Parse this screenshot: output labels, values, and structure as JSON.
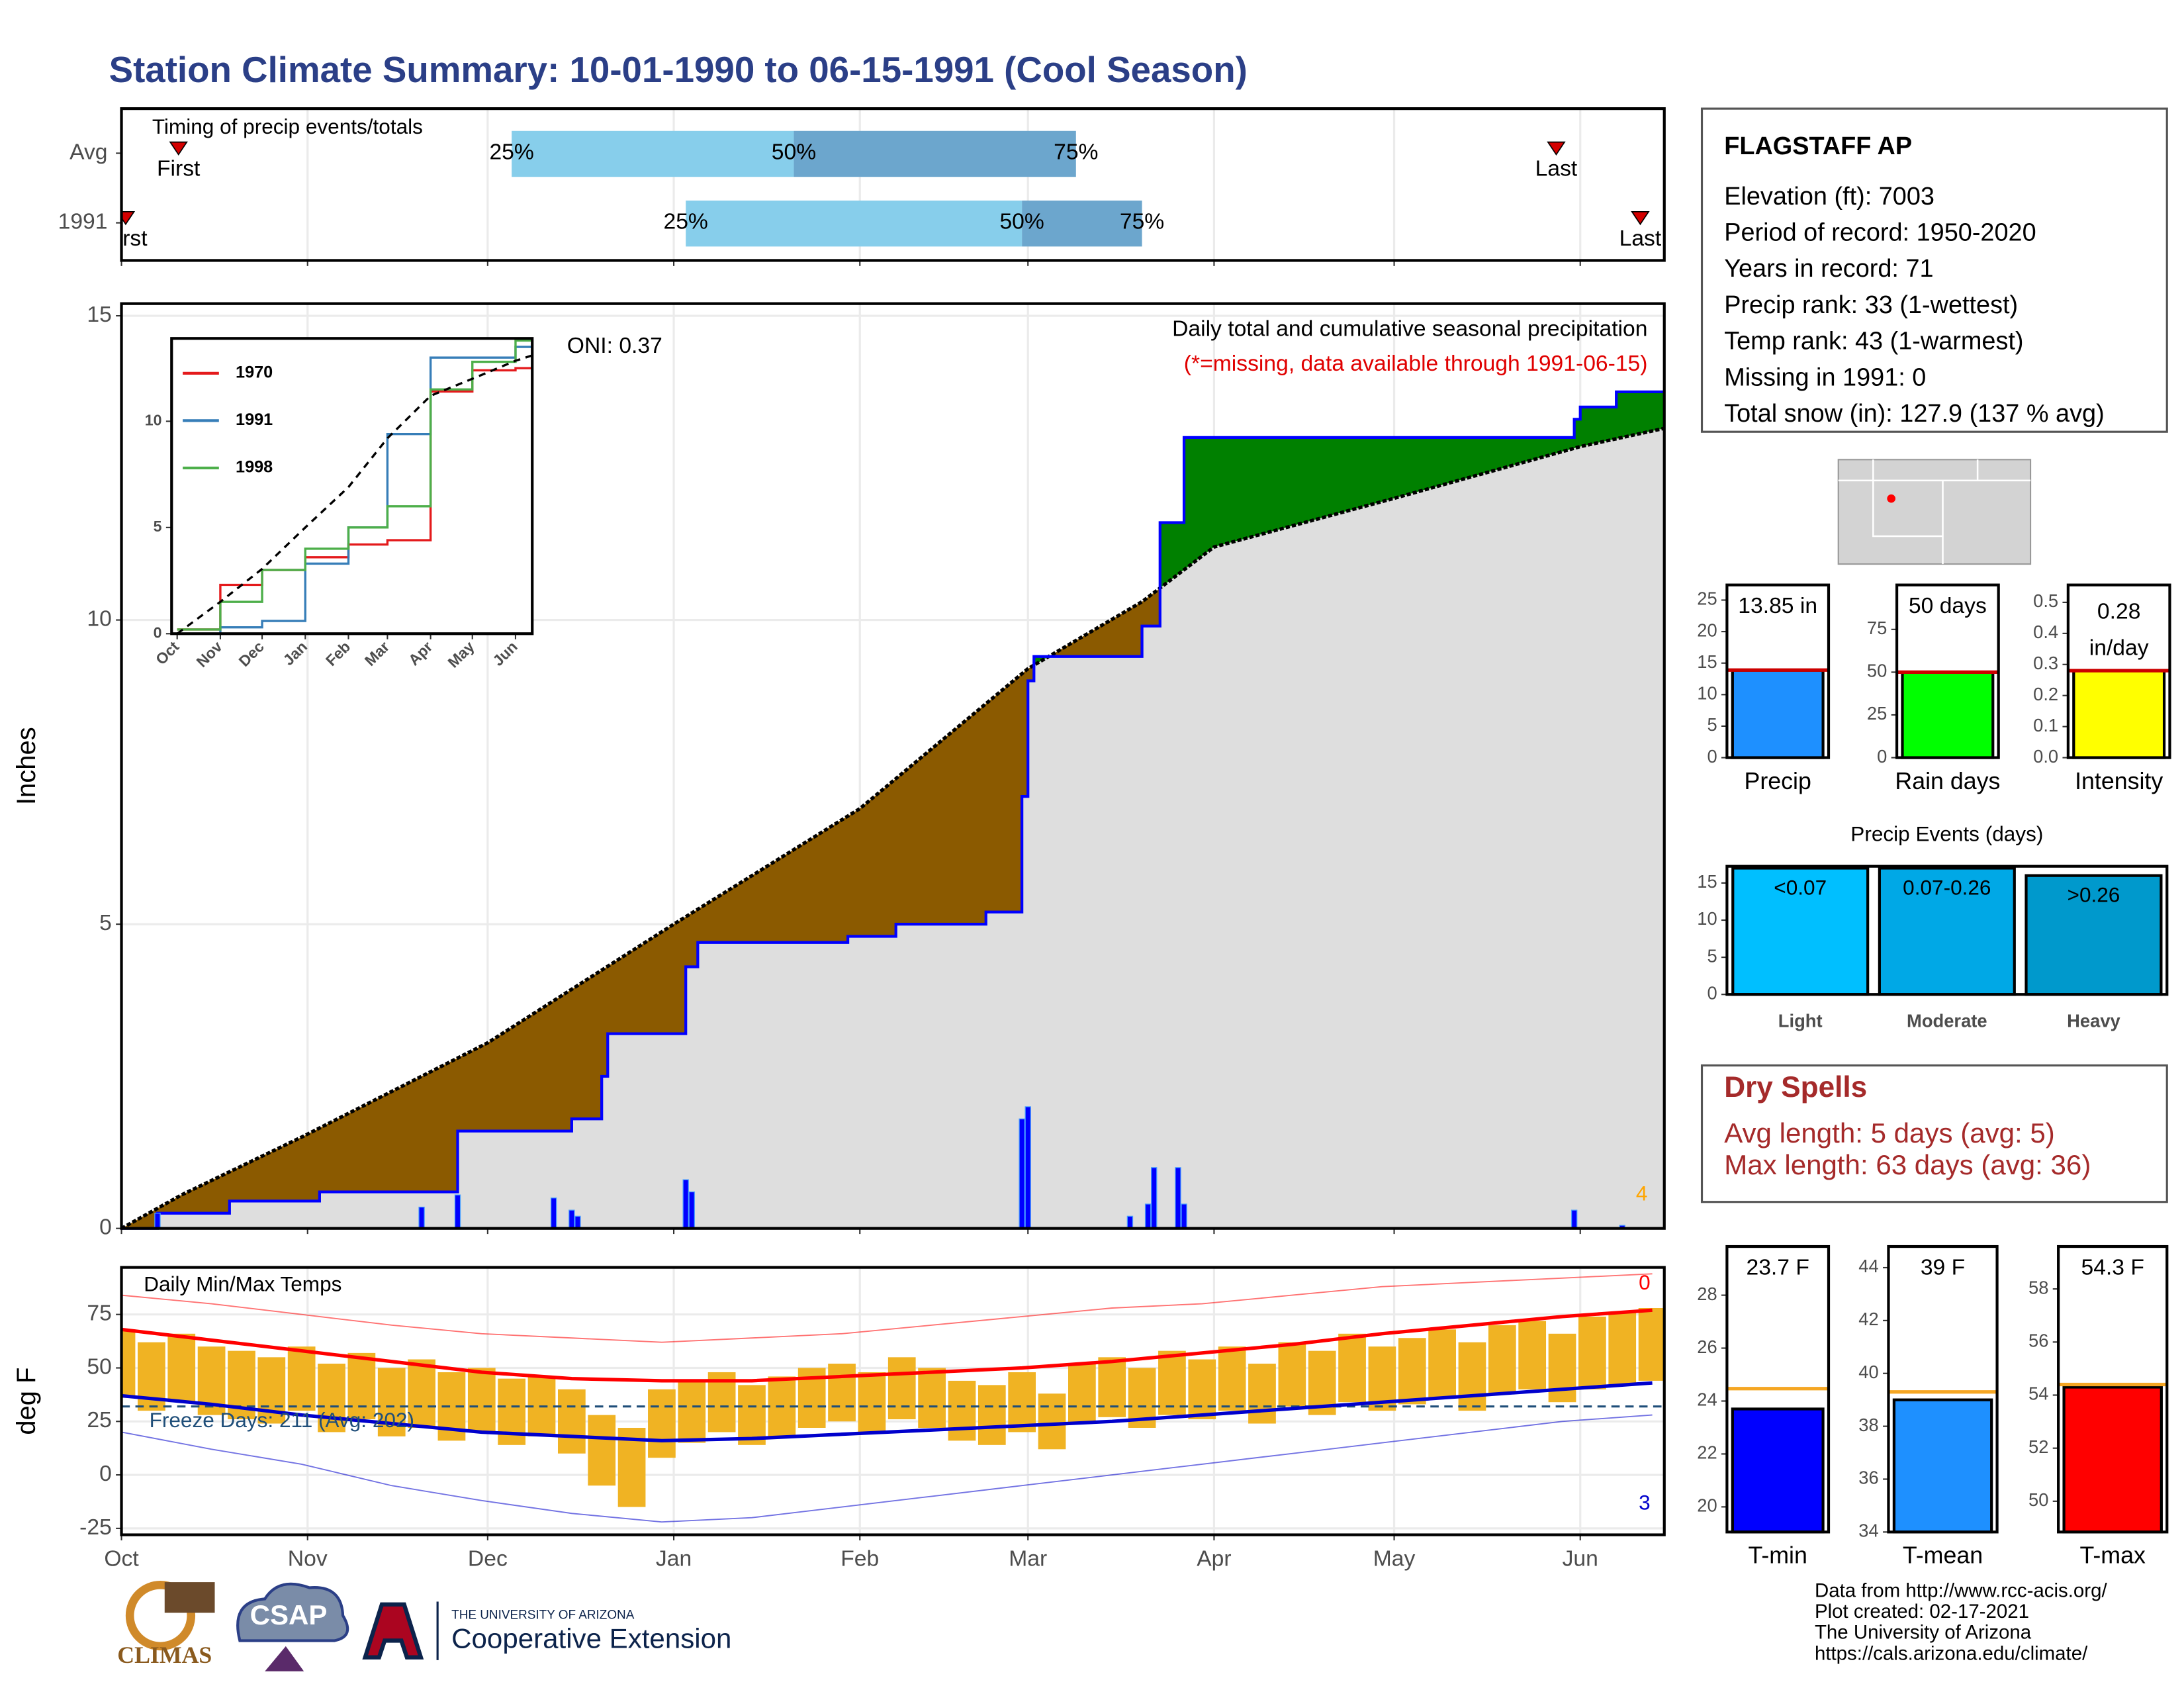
{
  "title": "Station Climate Summary: 10-01-1990 to 06-15-1991 (Cool Season)",
  "station": {
    "name": "FLAGSTAFF AP",
    "lines": [
      "Elevation (ft): 7003",
      "Period of record: 1950-2020",
      "Years in record: 71",
      "Precip rank: 33 (1-wettest)",
      "Temp rank: 43 (1-warmest)",
      "Missing in 1991: 0",
      "Total snow (in): 127.9 (137 % avg)"
    ]
  },
  "dry_spells": {
    "title": "Dry Spells",
    "lines": [
      "Avg length: 5 days (avg: 5)",
      "Max length: 63 days (avg: 36)"
    ]
  },
  "footer": [
    "Data from http://www.rcc-acis.org/",
    "Plot created: 02-17-2021",
    "The University of Arizona",
    "https://cals.arizona.edu/climate/"
  ],
  "logos": {
    "climas": "CLIMAS",
    "csap": "CSAP",
    "university": "THE UNIVERSITY OF ARIZONA",
    "extension": "Cooperative Extension"
  },
  "chart_data": [
    {
      "type": "timeline",
      "title": "Timing of precip events/totals",
      "categories": [
        "Avg",
        "1991"
      ],
      "labels": [
        "First",
        "25%",
        "50%",
        "75%",
        "Last"
      ],
      "series": [
        {
          "values": [
            9.5,
            65,
            112,
            159,
            239
          ]
        },
        {
          "values": [
            0.7,
            94,
            150,
            170,
            253
          ]
        }
      ],
      "colors": [
        "#87ceeb",
        "#6ca6cd"
      ],
      "marker_color": "#d40000",
      "xlim": [
        0,
        257
      ],
      "xticks": [
        0,
        31,
        61,
        92,
        123,
        151,
        182,
        212,
        243
      ],
      "grid": true
    },
    {
      "type": "area",
      "title": "Daily total and cumulative seasonal precipitation",
      "note": "(*=missing, data available through 1991-06-15)",
      "oni": "ONI: 0.37",
      "corner_label": "4",
      "ylabel": "Inches",
      "xlim": [
        0,
        257
      ],
      "ylim": [
        0,
        15.2
      ],
      "xticks": [
        0,
        31,
        61,
        92,
        123,
        151,
        182,
        212,
        243
      ],
      "yticks": [
        0,
        5,
        10,
        15
      ],
      "grid": true,
      "surplus_color": "#008000",
      "deficit_color": "#8b5a00",
      "base_color": "#dedede",
      "series": [
        {
          "color": "#0000ff",
          "x": [
            0,
            6,
            18,
            33,
            56,
            75,
            80,
            81,
            94,
            96,
            121,
            129,
            144,
            150,
            151,
            152,
            170,
            173,
            177,
            242,
            243,
            249
          ],
          "values": [
            0,
            0.25,
            0.45,
            0.6,
            1.6,
            1.8,
            2.5,
            3.2,
            4.3,
            4.7,
            4.8,
            5.0,
            5.2,
            7.1,
            9.0,
            9.4,
            9.9,
            11.6,
            13.0,
            13.3,
            13.5,
            13.75
          ]
        },
        {
          "color": "#000000",
          "x": [
            0,
            10,
            30,
            61,
            92,
            123,
            151,
            170,
            182,
            212,
            243,
            257
          ],
          "values": [
            0,
            0.55,
            1.5,
            3.05,
            5.0,
            6.9,
            9.2,
            10.3,
            11.2,
            12.0,
            12.85,
            13.15
          ]
        }
      ],
      "daily": {
        "color": "#0000ff",
        "x": [
          6,
          50,
          56,
          72,
          75,
          76,
          94,
          95,
          150,
          151,
          168,
          171,
          172,
          176,
          177,
          242,
          250
        ],
        "values": [
          0.25,
          0.35,
          0.55,
          0.5,
          0.3,
          0.2,
          0.8,
          0.6,
          1.8,
          2.0,
          0.2,
          0.4,
          1.0,
          1.0,
          0.4,
          0.3,
          0.05
        ]
      }
    },
    {
      "type": "line",
      "x": [
        0,
        31,
        61,
        92,
        123,
        151,
        182,
        212,
        243,
        255
      ],
      "xlim": [
        -4,
        255
      ],
      "ylim": [
        0,
        13.9
      ],
      "xticks": [
        {
          "value": 0,
          "label": "Oct"
        },
        {
          "value": 31,
          "label": "Nov"
        },
        {
          "value": 61,
          "label": "Dec"
        },
        {
          "value": 92,
          "label": "Jan"
        },
        {
          "value": 123,
          "label": "Feb"
        },
        {
          "value": 151,
          "label": "Mar"
        },
        {
          "value": 182,
          "label": "Apr"
        },
        {
          "value": 212,
          "label": "May"
        },
        {
          "value": 243,
          "label": "Jun"
        }
      ],
      "yticks": [
        0,
        5,
        10
      ],
      "series": [
        {
          "name": "1970",
          "color": "#e41a1c",
          "values": [
            0.2,
            2.3,
            3.0,
            3.6,
            4.2,
            4.4,
            11.4,
            12.4,
            12.5,
            12.6
          ]
        },
        {
          "name": "1991",
          "color": "#377eb8",
          "values": [
            0,
            0.3,
            0.6,
            3.3,
            5.0,
            9.4,
            13.0,
            13.0,
            13.5,
            13.75
          ]
        },
        {
          "name": "1998",
          "color": "#4daf4a",
          "values": [
            0.2,
            1.5,
            3.0,
            4.0,
            5.0,
            6.0,
            11.5,
            12.8,
            13.8,
            13.9
          ]
        },
        {
          "color": "#000000",
          "dashed": true,
          "values": [
            0,
            1.5,
            3.05,
            5.0,
            6.9,
            9.2,
            11.2,
            12.0,
            12.85,
            13.1
          ]
        }
      ]
    },
    {
      "type": "range",
      "title": "Daily Min/Max Temps",
      "annotation": "Freeze Days: 211 (Avg: 202)",
      "ylabel": "deg F",
      "hot_label": "0",
      "cold_label": "3",
      "freeze": 32,
      "xlim": [
        0,
        257
      ],
      "ylim": [
        -28,
        97
      ],
      "xticks": [
        {
          "value": 0,
          "label": "Oct"
        },
        {
          "value": 31,
          "label": "Nov"
        },
        {
          "value": 61,
          "label": "Dec"
        },
        {
          "value": 92,
          "label": "Jan"
        },
        {
          "value": 123,
          "label": "Feb"
        },
        {
          "value": 151,
          "label": "Mar"
        },
        {
          "value": 182,
          "label": "Apr"
        },
        {
          "value": 212,
          "label": "May"
        },
        {
          "value": 243,
          "label": "Jun"
        }
      ],
      "yticks": [
        -25,
        0,
        25,
        50,
        75
      ],
      "grid": true,
      "bar_color": "#f0b323",
      "x": [
        0,
        5,
        10,
        15,
        20,
        25,
        30,
        35,
        40,
        45,
        50,
        55,
        60,
        65,
        70,
        75,
        80,
        85,
        90,
        95,
        100,
        105,
        110,
        115,
        120,
        125,
        130,
        135,
        140,
        145,
        150,
        155,
        160,
        165,
        170,
        175,
        180,
        185,
        190,
        195,
        200,
        205,
        210,
        215,
        220,
        225,
        230,
        235,
        240,
        245,
        250,
        255
      ],
      "tmax": [
        68,
        62,
        66,
        60,
        58,
        55,
        60,
        52,
        57,
        50,
        54,
        48,
        50,
        45,
        46,
        40,
        28,
        22,
        40,
        44,
        48,
        42,
        46,
        50,
        52,
        48,
        55,
        50,
        44,
        42,
        48,
        38,
        52,
        55,
        50,
        58,
        54,
        60,
        52,
        62,
        58,
        66,
        60,
        64,
        68,
        62,
        70,
        72,
        66,
        74,
        76,
        78
      ],
      "tmin": [
        36,
        30,
        34,
        28,
        26,
        24,
        30,
        20,
        26,
        18,
        22,
        16,
        20,
        14,
        18,
        10,
        -5,
        -15,
        8,
        15,
        20,
        14,
        18,
        22,
        25,
        20,
        26,
        22,
        16,
        14,
        20,
        12,
        24,
        27,
        22,
        28,
        26,
        30,
        24,
        32,
        28,
        34,
        30,
        33,
        36,
        30,
        38,
        40,
        34,
        40,
        42,
        44
      ],
      "normal_x": [
        0,
        15,
        30,
        45,
        60,
        75,
        90,
        105,
        120,
        135,
        150,
        165,
        180,
        195,
        210,
        225,
        240,
        255
      ],
      "normal_max": [
        68,
        63,
        58,
        53,
        48,
        45,
        44,
        44,
        46,
        48,
        50,
        53,
        57,
        61,
        66,
        70,
        74,
        77
      ],
      "normal_min": [
        37,
        33,
        28,
        24,
        20,
        18,
        16,
        17,
        19,
        21,
        23,
        25,
        28,
        31,
        34,
        37,
        40,
        43
      ],
      "record_max": [
        84,
        80,
        75,
        70,
        66,
        64,
        62,
        64,
        66,
        70,
        74,
        78,
        80,
        84,
        88,
        90,
        92,
        94
      ],
      "record_min": [
        20,
        12,
        5,
        -5,
        -12,
        -18,
        -22,
        -20,
        -15,
        -10,
        -5,
        0,
        5,
        10,
        15,
        20,
        25,
        28
      ],
      "max_color": "#ff0000",
      "min_color": "#0000cc",
      "freeze_color": "#1f4e79"
    },
    {
      "type": "bar",
      "categories": [
        "Precip"
      ],
      "values": [
        13.85
      ],
      "value_labels": [
        "13.85 in"
      ],
      "avg": 13.9,
      "color": "#1e90ff",
      "avg_color": "#cc0000",
      "ylim": [
        0,
        27.4
      ],
      "yticks": [
        0,
        5,
        10,
        15,
        20,
        25
      ]
    },
    {
      "type": "bar",
      "categories": [
        "Rain days"
      ],
      "values": [
        50
      ],
      "value_labels": [
        "50 days"
      ],
      "avg": 50,
      "color": "#00ff00",
      "avg_color": "#cc0000",
      "ylim": [
        0,
        101
      ],
      "yticks": [
        0,
        25,
        50,
        75
      ]
    },
    {
      "type": "bar",
      "categories": [
        "Intensity"
      ],
      "values": [
        0.28
      ],
      "value_labels": [
        [
          "0.28",
          "in/day"
        ]
      ],
      "avg": 0.28,
      "color": "#ffff00",
      "avg_color": "#cc0000",
      "ylim": [
        0,
        0.556
      ],
      "yticks": [
        {
          "value": 0,
          "label": "0.0"
        },
        0.1,
        0.2,
        0.3,
        0.4,
        0.5
      ]
    },
    {
      "type": "bar",
      "title": "Precip Events (days)",
      "categories": [
        "Light",
        "Moderate",
        "Heavy"
      ],
      "values": [
        17,
        17,
        16
      ],
      "bar_labels": [
        "<0.07",
        "0.07-0.26",
        ">0.26"
      ],
      "colors": [
        "#00bfff",
        "#00a8e6",
        "#0099cc"
      ],
      "ylim": [
        0,
        17.25
      ],
      "yticks": [
        0,
        5,
        10,
        15
      ]
    },
    {
      "type": "bar",
      "categories": [
        "T-min"
      ],
      "values": [
        23.7
      ],
      "value_labels": [
        "23.7 F"
      ],
      "avg": 24.47,
      "color": "#0000ff",
      "avg_color": "#f5a623",
      "ylim": [
        19.05,
        29.84
      ],
      "yticks": [
        20,
        22,
        24,
        26,
        28
      ]
    },
    {
      "type": "bar",
      "categories": [
        "T-mean"
      ],
      "values": [
        39
      ],
      "value_labels": [
        "39 F"
      ],
      "avg": 39.3,
      "color": "#1e90ff",
      "avg_color": "#f5a623",
      "ylim": [
        34,
        44.8
      ],
      "yticks": [
        34,
        36,
        38,
        40,
        42,
        44
      ]
    },
    {
      "type": "bar",
      "categories": [
        "T-max"
      ],
      "values": [
        54.3
      ],
      "value_labels": [
        "54.3 F"
      ],
      "avg": 54.4,
      "color": "#ff0000",
      "avg_color": "#f5a623",
      "ylim": [
        48.84,
        59.6
      ],
      "yticks": [
        50,
        52,
        54,
        56,
        58
      ]
    }
  ]
}
